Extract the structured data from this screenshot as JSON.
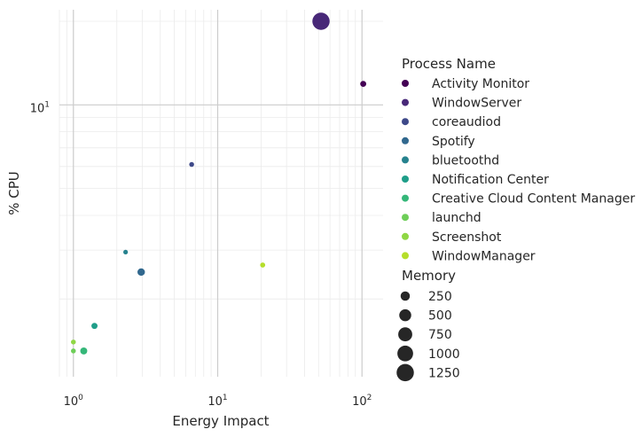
{
  "chart_data": {
    "type": "scatter",
    "xlabel": "Energy Impact",
    "ylabel": "% CPU",
    "x_scale": "log",
    "y_scale": "log",
    "xlim": [
      0.8,
      140
    ],
    "ylim": [
      1.05,
      22
    ],
    "x_ticks": [
      {
        "base": "10",
        "exp": "0",
        "value": 1
      },
      {
        "base": "10",
        "exp": "1",
        "value": 10
      },
      {
        "base": "10",
        "exp": "2",
        "value": 100
      }
    ],
    "y_ticks": [
      {
        "base": "10",
        "exp": "1",
        "value": 10
      }
    ],
    "grid": true,
    "legend_position": "right",
    "hue_legend": {
      "title": "Process Name",
      "entries": [
        {
          "name": "Activity Monitor",
          "color": "#440154"
        },
        {
          "name": "WindowServer",
          "color": "#482878"
        },
        {
          "name": "coreaudiod",
          "color": "#3e4989"
        },
        {
          "name": "Spotify",
          "color": "#31688e"
        },
        {
          "name": "bluetoothd",
          "color": "#26828e"
        },
        {
          "name": "Notification Center",
          "color": "#1f9e89"
        },
        {
          "name": "Creative Cloud Content Manager",
          "color": "#35b779"
        },
        {
          "name": "launchd",
          "color": "#6ece58"
        },
        {
          "name": "Screenshot",
          "color": "#8fd744"
        },
        {
          "name": "WindowManager",
          "color": "#b5de2b"
        }
      ]
    },
    "size_legend": {
      "title": "Memory",
      "entries": [
        {
          "label": "250",
          "value": 250
        },
        {
          "label": "500",
          "value": 500
        },
        {
          "label": "750",
          "value": 750
        },
        {
          "label": "1000",
          "value": 1000
        },
        {
          "label": "1250",
          "value": 1250
        }
      ]
    },
    "points": [
      {
        "process": "Activity Monitor",
        "x": 102,
        "y": 11.9,
        "memory": 60
      },
      {
        "process": "WindowServer",
        "x": 52,
        "y": 20,
        "memory": 1250
      },
      {
        "process": "coreaudiod",
        "x": 6.6,
        "y": 6.1,
        "memory": 25
      },
      {
        "process": "Spotify",
        "x": 2.95,
        "y": 2.5,
        "memory": 130
      },
      {
        "process": "bluetoothd",
        "x": 2.3,
        "y": 2.95,
        "memory": 20
      },
      {
        "process": "Notification Center",
        "x": 1.4,
        "y": 1.6,
        "memory": 65
      },
      {
        "process": "Creative Cloud Content Manager",
        "x": 1.18,
        "y": 1.3,
        "memory": 105
      },
      {
        "process": "launchd",
        "x": 1.0,
        "y": 1.3,
        "memory": 25
      },
      {
        "process": "Screenshot",
        "x": 1.0,
        "y": 1.4,
        "memory": 25
      },
      {
        "process": "WindowManager",
        "x": 20.5,
        "y": 2.65,
        "memory": 30
      }
    ]
  }
}
